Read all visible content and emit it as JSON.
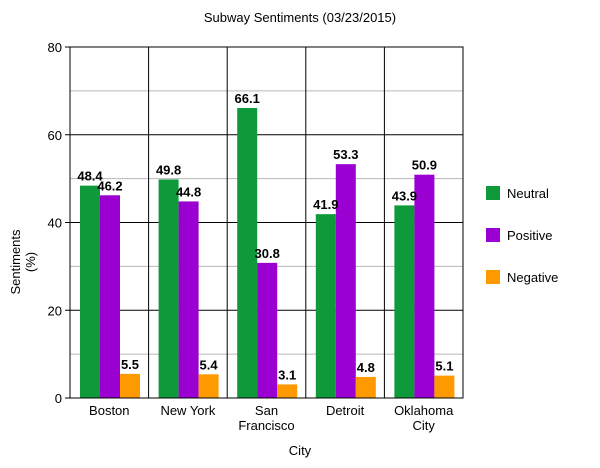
{
  "chart_data": {
    "type": "bar",
    "title": "Subway Sentiments (03/23/2015)",
    "xlabel": "City",
    "ylabel_lines": [
      "Sentiments",
      "(%)"
    ],
    "categories": [
      [
        "Boston"
      ],
      [
        "New York"
      ],
      [
        "San",
        "Francisco"
      ],
      [
        "Detroit"
      ],
      [
        "Oklahoma",
        "City"
      ]
    ],
    "series": [
      {
        "name": "Neutral",
        "color": "#0e9a3a",
        "values": [
          48.4,
          49.8,
          66.1,
          41.9,
          43.9
        ]
      },
      {
        "name": "Positive",
        "color": "#9b00d3",
        "values": [
          46.2,
          44.8,
          30.8,
          53.3,
          50.9
        ]
      },
      {
        "name": "Negative",
        "color": "#ff9900",
        "values": [
          5.5,
          5.4,
          3.1,
          4.8,
          5.1
        ]
      }
    ],
    "ylim": [
      0,
      80
    ],
    "yticks": [
      0,
      20,
      40,
      60,
      80
    ],
    "minor_gridlines": [
      10,
      30,
      50,
      70
    ],
    "grid": true,
    "legend_position": "right"
  }
}
